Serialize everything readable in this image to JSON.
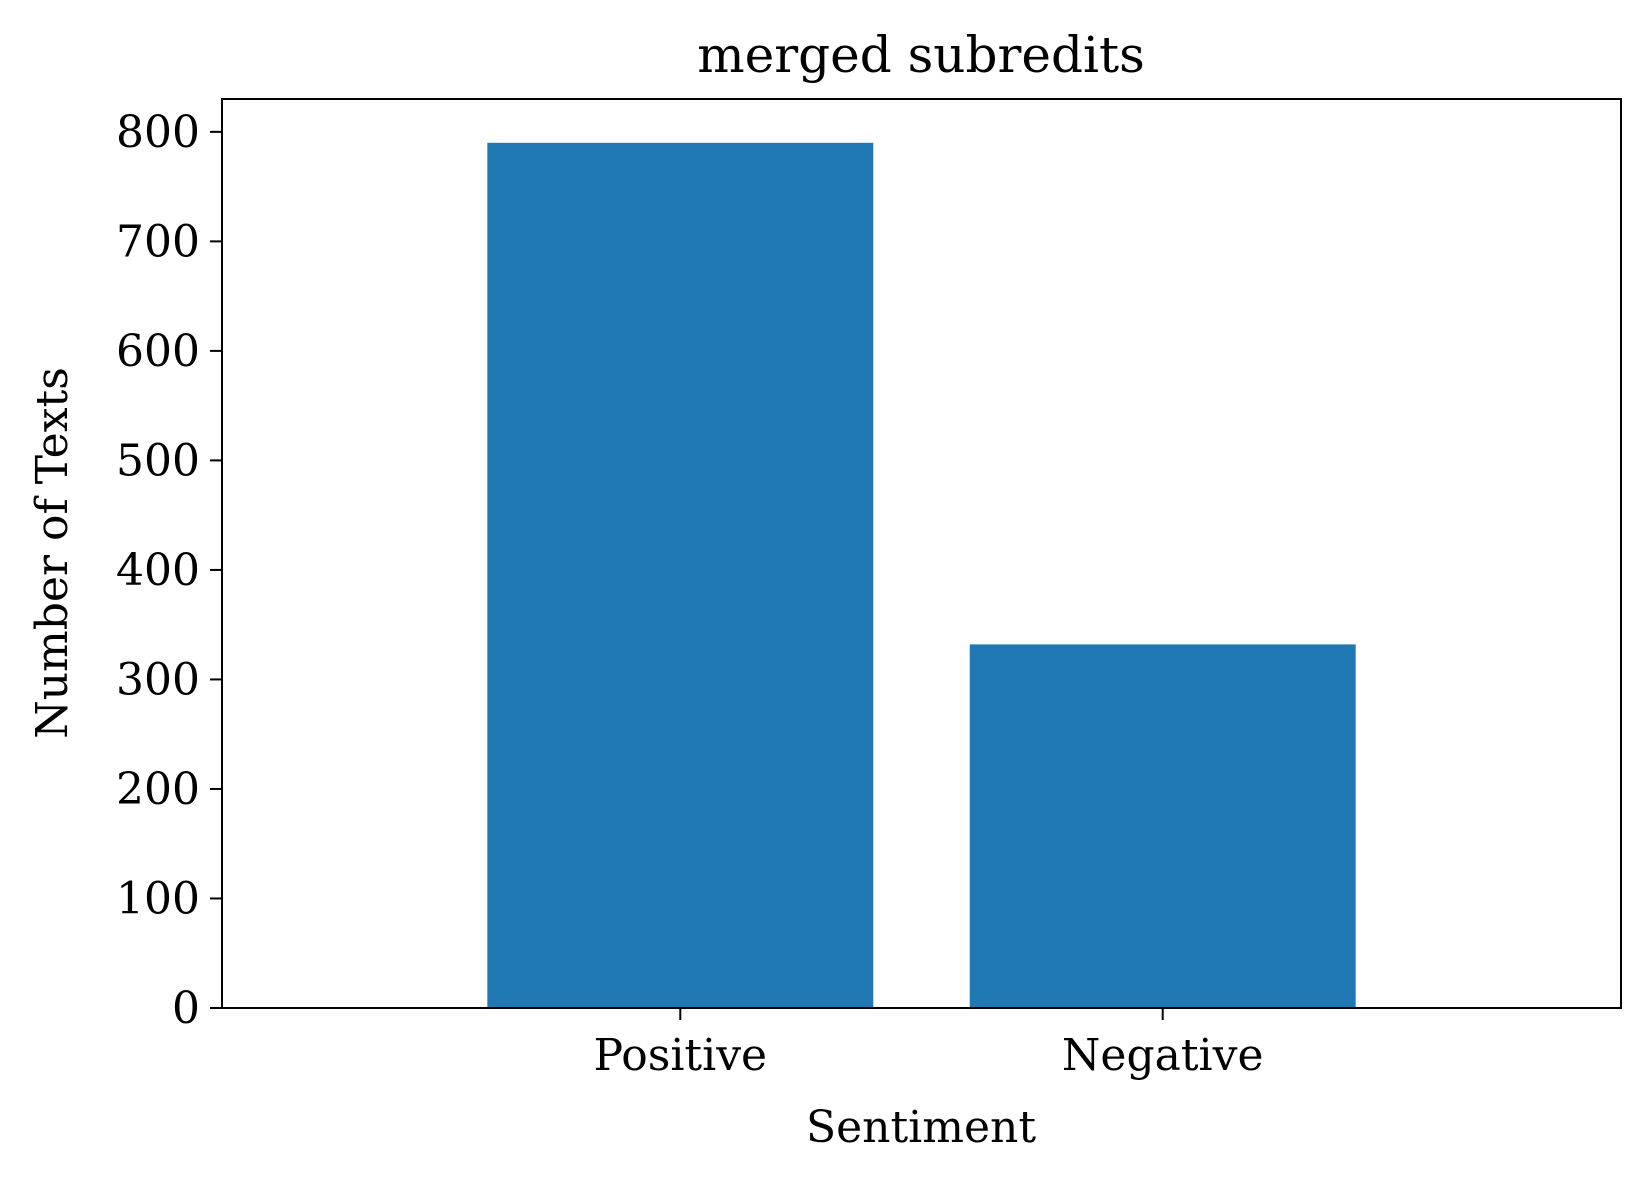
{
  "chart_data": {
    "type": "bar",
    "title": "merged subredits",
    "xlabel": "Sentiment",
    "ylabel": "Number of Texts",
    "categories": [
      "Positive",
      "Negative"
    ],
    "values": [
      790,
      332
    ],
    "ylim": [
      0,
      830
    ],
    "yticks": [
      0,
      100,
      200,
      300,
      400,
      500,
      600,
      700,
      800
    ],
    "grid": false,
    "legend": "none",
    "bar_color": "#1f77b4"
  }
}
